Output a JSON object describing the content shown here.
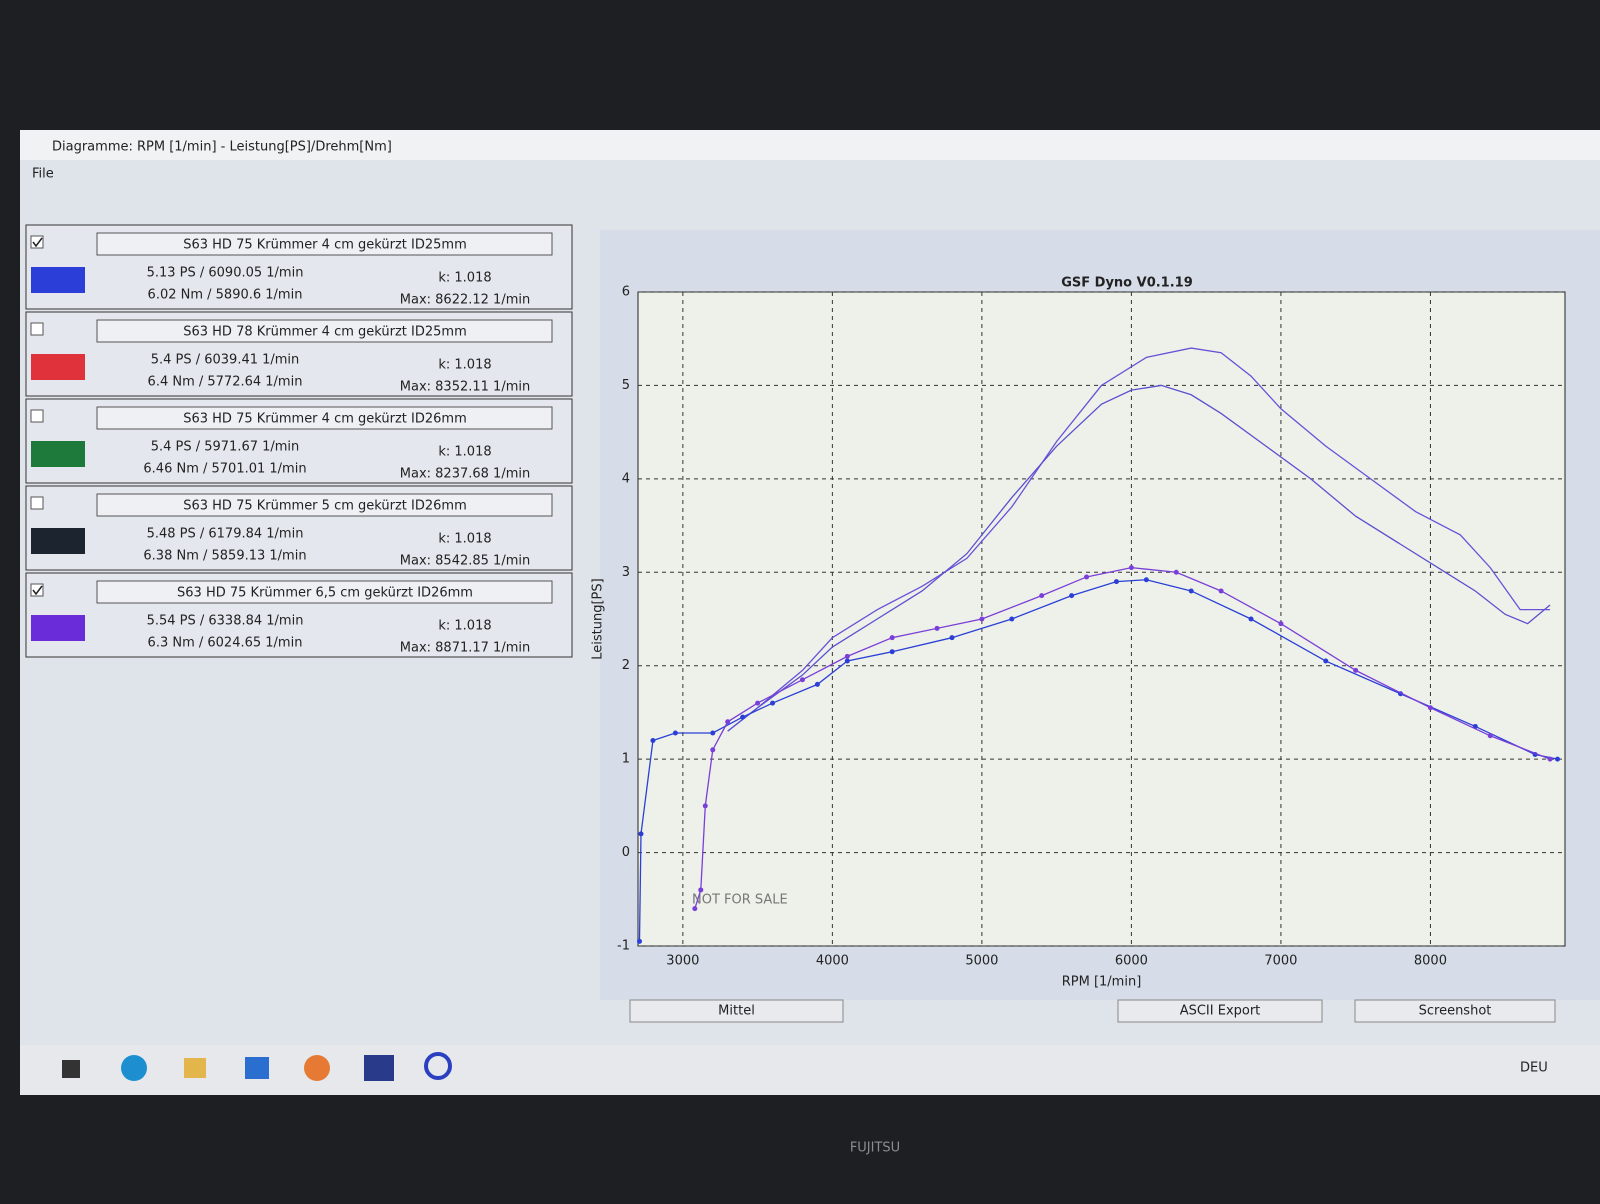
{
  "window": {
    "title": "Diagramme: RPM [1/min] - Leistung[PS]/Drehm[Nm]",
    "menu": [
      "File"
    ]
  },
  "runs": [
    {
      "checked": true,
      "name": "S63 HD 75 Krümmer 4 cm gekürzt ID25mm",
      "color": "#2b3fd8",
      "power": "5.13 PS / 6090.05 1/min",
      "torque": "6.02 Nm / 5890.6 1/min",
      "k": "k: 1.018",
      "max": "Max: 8622.12 1/min"
    },
    {
      "checked": false,
      "name": "S63 HD 78 Krümmer 4 cm gekürzt ID25mm",
      "color": "#e0323a",
      "power": "5.4 PS / 6039.41 1/min",
      "torque": "6.4 Nm / 5772.64 1/min",
      "k": "k: 1.018",
      "max": "Max: 8352.11 1/min"
    },
    {
      "checked": false,
      "name": "S63 HD 75 Krümmer 4 cm gekürzt ID26mm",
      "color": "#1e7a3a",
      "power": "5.4 PS / 5971.67 1/min",
      "torque": "6.46 Nm / 5701.01 1/min",
      "k": "k: 1.018",
      "max": "Max: 8237.68 1/min"
    },
    {
      "checked": false,
      "name": "S63 HD 75 Krümmer 5 cm gekürzt ID26mm",
      "color": "#1c2430",
      "power": "5.48 PS / 6179.84 1/min",
      "torque": "6.38 Nm / 5859.13 1/min",
      "k": "k: 1.018",
      "max": "Max: 8542.85 1/min"
    },
    {
      "checked": true,
      "name": "S63 HD 75 Krümmer 6,5 cm gekürzt ID26mm",
      "color": "#6a2bd8",
      "power": "5.54 PS / 6338.84 1/min",
      "torque": "6.3 Nm / 6024.65 1/min",
      "k": "k: 1.018",
      "max": "Max: 8871.17 1/min"
    }
  ],
  "chart_data": {
    "type": "line",
    "title": "GSF Dyno V0.1.19",
    "xlabel": "RPM [1/min]",
    "ylabel": "Leistung[PS]",
    "watermark": "NOT FOR SALE",
    "xlim": [
      2700,
      8900
    ],
    "ylim": [
      -1,
      6
    ],
    "xticks": [
      3000,
      4000,
      5000,
      6000,
      7000,
      8000
    ],
    "yticks": [
      -1,
      0,
      1,
      2,
      3,
      4,
      5,
      6
    ],
    "grid": true,
    "series": [
      {
        "color": "#6a50d8",
        "markers": false,
        "x": [
          3300,
          3500,
          3800,
          4000,
          4300,
          4600,
          4900,
          5200,
          5500,
          5800,
          6100,
          6400,
          6600,
          6800,
          7000,
          7300,
          7600,
          7900,
          8200,
          8400,
          8600,
          8800
        ],
        "values": [
          1.3,
          1.55,
          1.95,
          2.3,
          2.6,
          2.85,
          3.15,
          3.7,
          4.4,
          5.0,
          5.3,
          5.4,
          5.35,
          5.1,
          4.75,
          4.35,
          4.0,
          3.65,
          3.4,
          3.05,
          2.6,
          2.6
        ]
      },
      {
        "color": "#5a50d0",
        "markers": false,
        "x": [
          3300,
          3500,
          3800,
          4000,
          4300,
          4600,
          4900,
          5200,
          5500,
          5800,
          6000,
          6200,
          6400,
          6600,
          6900,
          7200,
          7500,
          7800,
          8100,
          8300,
          8500,
          8650,
          8800
        ],
        "values": [
          1.3,
          1.55,
          1.9,
          2.2,
          2.5,
          2.8,
          3.2,
          3.8,
          4.35,
          4.8,
          4.95,
          5.0,
          4.9,
          4.7,
          4.35,
          4.0,
          3.6,
          3.3,
          3.0,
          2.8,
          2.55,
          2.45,
          2.65
        ]
      },
      {
        "color": "#2b3fd8",
        "markers": true,
        "x": [
          2710,
          2720,
          2800,
          2950,
          3200,
          3400,
          3600,
          3900,
          4100,
          4400,
          4800,
          5200,
          5600,
          5900,
          6100,
          6400,
          6800,
          7300,
          7800,
          8300,
          8700,
          8850
        ],
        "values": [
          -0.95,
          0.2,
          1.2,
          1.28,
          1.28,
          1.45,
          1.6,
          1.8,
          2.05,
          2.15,
          2.3,
          2.5,
          2.75,
          2.9,
          2.92,
          2.8,
          2.5,
          2.05,
          1.7,
          1.35,
          1.05,
          1.0
        ]
      },
      {
        "color": "#7a3fd8",
        "markers": true,
        "x": [
          3080,
          3120,
          3150,
          3200,
          3300,
          3500,
          3800,
          4100,
          4400,
          4700,
          5000,
          5400,
          5700,
          6000,
          6300,
          6600,
          7000,
          7500,
          8000,
          8400,
          8800
        ],
        "values": [
          -0.6,
          -0.4,
          0.5,
          1.1,
          1.4,
          1.6,
          1.85,
          2.1,
          2.3,
          2.4,
          2.5,
          2.75,
          2.95,
          3.05,
          3.0,
          2.8,
          2.45,
          1.95,
          1.55,
          1.25,
          1.0
        ]
      }
    ]
  },
  "buttons": [
    "Mittel",
    "ASCII Export",
    "Screenshot"
  ],
  "taskbar": {
    "language": "DEU"
  },
  "bezel": {
    "brand": "FUJITSU"
  }
}
